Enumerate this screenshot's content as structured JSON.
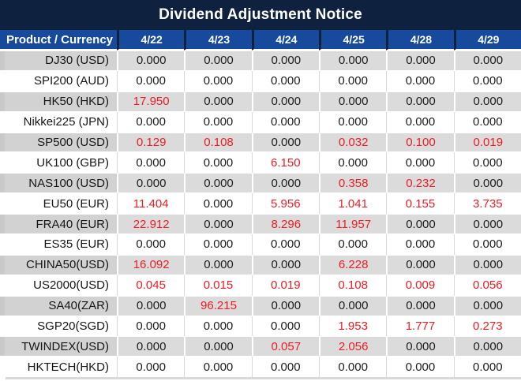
{
  "title": "Dividend Adjustment Notice",
  "colors": {
    "title_bg": "#0e2240",
    "header_bg": "#174a9d",
    "row_alt_bg": "#dbdbdb",
    "red": "#ee1c25",
    "text": "#1d1d1d"
  },
  "chart_data": {
    "type": "table",
    "title": "Dividend Adjustment Notice",
    "product_header": "Product / Currency",
    "date_headers": [
      "4/22",
      "4/23",
      "4/24",
      "4/25",
      "4/28",
      "4/29"
    ],
    "rows": [
      {
        "product": "DJ30 (USD)",
        "values": [
          "0.000",
          "0.000",
          "0.000",
          "0.000",
          "0.000",
          "0.000"
        ],
        "red": [
          false,
          false,
          false,
          false,
          false,
          false
        ]
      },
      {
        "product": "SPI200 (AUD)",
        "values": [
          "0.000",
          "0.000",
          "0.000",
          "0.000",
          "0.000",
          "0.000"
        ],
        "red": [
          false,
          false,
          false,
          false,
          false,
          false
        ]
      },
      {
        "product": "HK50 (HKD)",
        "values": [
          "17.950",
          "0.000",
          "0.000",
          "0.000",
          "0.000",
          "0.000"
        ],
        "red": [
          true,
          false,
          false,
          false,
          false,
          false
        ]
      },
      {
        "product": "Nikkei225 (JPN)",
        "values": [
          "0.000",
          "0.000",
          "0.000",
          "0.000",
          "0.000",
          "0.000"
        ],
        "red": [
          false,
          false,
          false,
          false,
          false,
          false
        ]
      },
      {
        "product": "SP500 (USD)",
        "values": [
          "0.129",
          "0.108",
          "0.000",
          "0.032",
          "0.100",
          "0.019"
        ],
        "red": [
          true,
          true,
          false,
          true,
          true,
          true
        ]
      },
      {
        "product": "UK100 (GBP)",
        "values": [
          "0.000",
          "0.000",
          "6.150",
          "0.000",
          "0.000",
          "0.000"
        ],
        "red": [
          false,
          false,
          true,
          false,
          false,
          false
        ]
      },
      {
        "product": "NAS100 (USD)",
        "values": [
          "0.000",
          "0.000",
          "0.000",
          "0.358",
          "0.232",
          "0.000"
        ],
        "red": [
          false,
          false,
          false,
          true,
          true,
          false
        ]
      },
      {
        "product": "EU50 (EUR)",
        "values": [
          "11.404",
          "0.000",
          "5.956",
          "1.041",
          "0.155",
          "3.735"
        ],
        "red": [
          true,
          false,
          true,
          true,
          true,
          true
        ]
      },
      {
        "product": "FRA40 (EUR)",
        "values": [
          "22.912",
          "0.000",
          "8.296",
          "11.957",
          "0.000",
          "0.000"
        ],
        "red": [
          true,
          false,
          true,
          true,
          false,
          false
        ]
      },
      {
        "product": "ES35 (EUR)",
        "values": [
          "0.000",
          "0.000",
          "0.000",
          "0.000",
          "0.000",
          "0.000"
        ],
        "red": [
          false,
          false,
          false,
          false,
          false,
          false
        ]
      },
      {
        "product": "CHINA50(USD)",
        "values": [
          "16.092",
          "0.000",
          "0.000",
          "6.228",
          "0.000",
          "0.000"
        ],
        "red": [
          true,
          false,
          false,
          true,
          false,
          false
        ]
      },
      {
        "product": "US2000(USD)",
        "values": [
          "0.045",
          "0.015",
          "0.019",
          "0.108",
          "0.009",
          "0.056"
        ],
        "red": [
          true,
          true,
          true,
          true,
          true,
          true
        ]
      },
      {
        "product": "SA40(ZAR)",
        "values": [
          "0.000",
          "96.215",
          "0.000",
          "0.000",
          "0.000",
          "0.000"
        ],
        "red": [
          false,
          true,
          false,
          false,
          false,
          false
        ]
      },
      {
        "product": "SGP20(SGD)",
        "values": [
          "0.000",
          "0.000",
          "0.000",
          "1.953",
          "1.777",
          "0.273"
        ],
        "red": [
          false,
          false,
          false,
          true,
          true,
          true
        ]
      },
      {
        "product": "TWINDEX(USD)",
        "values": [
          "0.000",
          "0.000",
          "0.057",
          "2.056",
          "0.000",
          "0.000"
        ],
        "red": [
          false,
          false,
          true,
          true,
          false,
          false
        ]
      },
      {
        "product": "HKTECH(HKD)",
        "values": [
          "0.000",
          "0.000",
          "0.000",
          "0.000",
          "0.000",
          "0.000"
        ],
        "red": [
          false,
          false,
          false,
          false,
          false,
          false
        ]
      }
    ]
  }
}
